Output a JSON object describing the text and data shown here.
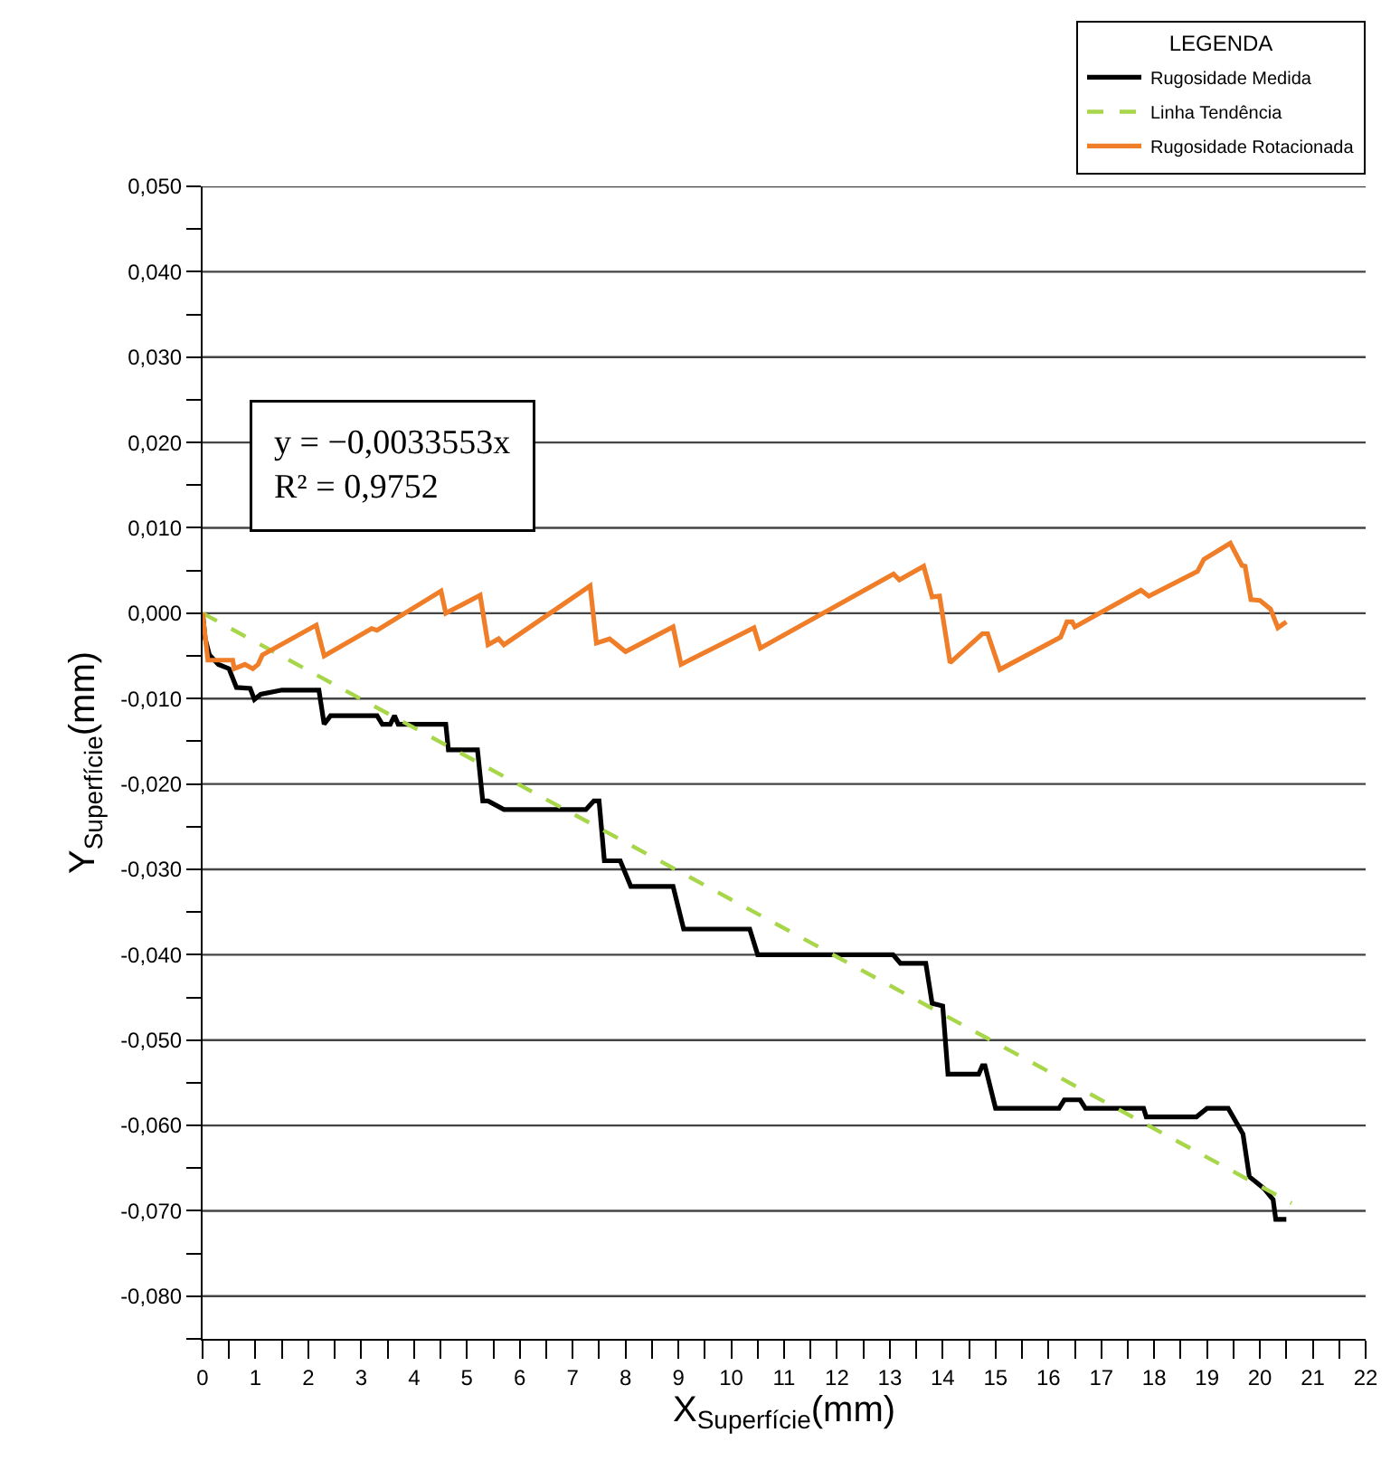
{
  "chart_data": {
    "type": "line",
    "xlabel": "X$_{Superfície}$(mm)",
    "ylabel": "Y$_{Superfície}$(mm)",
    "legend_title": "LEGENDA",
    "annotations": [
      "y = −0,0033553x",
      "R² = 0,9752"
    ],
    "xlim": [
      0,
      22
    ],
    "xticks": [
      0,
      {
        "value": 0.5,
        "label": null
      },
      1,
      {
        "value": 1.5,
        "label": null
      },
      2,
      {
        "value": 2.5,
        "label": null
      },
      3,
      {
        "value": 3.5,
        "label": null
      },
      4,
      {
        "value": 4.5,
        "label": null
      },
      5,
      {
        "value": 5.5,
        "label": null
      },
      6,
      {
        "value": 6.5,
        "label": null
      },
      7,
      {
        "value": 7.5,
        "label": null
      },
      8,
      {
        "value": 8.5,
        "label": null
      },
      9,
      {
        "value": 9.5,
        "label": null
      },
      10,
      {
        "value": 10.5,
        "label": null
      },
      11,
      {
        "value": 11.5,
        "label": null
      },
      12,
      {
        "value": 12.5,
        "label": null
      },
      13,
      {
        "value": 13.5,
        "label": null
      },
      14,
      {
        "value": 14.5,
        "label": null
      },
      15,
      {
        "value": 15.5,
        "label": null
      },
      16,
      {
        "value": 16.5,
        "label": null
      },
      17,
      {
        "value": 17.5,
        "label": null
      },
      18,
      {
        "value": 18.5,
        "label": null
      },
      19,
      {
        "value": 19.5,
        "label": null
      },
      20,
      {
        "value": 20.5,
        "label": null
      },
      21,
      {
        "value": 21.5,
        "label": null
      },
      22
    ],
    "ylim": [
      -0.085,
      0.05
    ],
    "yticks": [
      {
        "value": 0.05,
        "label": "0,050"
      },
      {
        "value": 0.045,
        "label": null
      },
      {
        "value": 0.04,
        "label": "0,040"
      },
      {
        "value": 0.035,
        "label": null
      },
      {
        "value": 0.03,
        "label": "0,030"
      },
      {
        "value": 0.025,
        "label": null
      },
      {
        "value": 0.02,
        "label": "0,020"
      },
      {
        "value": 0.015,
        "label": null
      },
      {
        "value": 0.01,
        "label": "0,010"
      },
      {
        "value": 0.005,
        "label": null
      },
      {
        "value": 0,
        "label": "0,000"
      },
      {
        "value": -0.005,
        "label": null
      },
      {
        "value": -0.01,
        "label": "-0,010"
      },
      {
        "value": -0.015,
        "label": null
      },
      {
        "value": -0.02,
        "label": "-0,020"
      },
      {
        "value": -0.025,
        "label": null
      },
      {
        "value": -0.03,
        "label": "-0,030"
      },
      {
        "value": -0.035,
        "label": null
      },
      {
        "value": -0.04,
        "label": "-0,040"
      },
      {
        "value": -0.045,
        "label": null
      },
      {
        "value": -0.05,
        "label": "-0,050"
      },
      {
        "value": -0.055,
        "label": null
      },
      {
        "value": -0.06,
        "label": "-0,060"
      },
      {
        "value": -0.065,
        "label": null
      },
      {
        "value": -0.07,
        "label": "-0,070"
      },
      {
        "value": -0.075,
        "label": null
      },
      {
        "value": -0.08,
        "label": "-0,080"
      },
      {
        "value": -0.085,
        "label": null
      }
    ],
    "grid": "y",
    "legend": "top right",
    "marker": "none",
    "series": [
      {
        "name": "Rugosidade Medida",
        "color": "#000000",
        "line_style": "solid",
        "x": [
          0,
          0.05,
          0.13,
          0.3,
          0.5,
          0.64,
          0.9,
          0.98,
          1.1,
          1.5,
          2.2,
          2.3,
          2.42,
          3.3,
          3.4,
          3.55,
          3.63,
          3.7,
          4.6,
          4.65,
          5.2,
          5.3,
          5.4,
          5.7,
          7.25,
          7.4,
          7.5,
          7.6,
          7.9,
          8.1,
          8.9,
          9.1,
          10.35,
          10.5,
          13.06,
          13.2,
          13.68,
          13.8,
          14.0,
          14.1,
          14.68,
          14.75,
          14.8,
          15.0,
          16.2,
          16.3,
          16.6,
          16.7,
          17.8,
          17.85,
          18.8,
          19.0,
          19.4,
          19.68,
          19.8,
          20.08,
          20.25,
          20.3,
          20.5
        ],
        "values": [
          0,
          -0.003,
          -0.0049,
          -0.006,
          -0.0065,
          -0.0087,
          -0.0088,
          -0.0101,
          -0.0095,
          -0.009,
          -0.009,
          -0.013,
          -0.012,
          -0.012,
          -0.013,
          -0.013,
          -0.012,
          -0.013,
          -0.013,
          -0.016,
          -0.016,
          -0.022,
          -0.022,
          -0.023,
          -0.023,
          -0.022,
          -0.022,
          -0.029,
          -0.029,
          -0.032,
          -0.032,
          -0.037,
          -0.037,
          -0.04,
          -0.04,
          -0.041,
          -0.041,
          -0.0457,
          -0.046,
          -0.054,
          -0.054,
          -0.053,
          -0.053,
          -0.058,
          -0.058,
          -0.057,
          -0.057,
          -0.058,
          -0.058,
          -0.059,
          -0.059,
          -0.058,
          -0.058,
          -0.061,
          -0.066,
          -0.0674,
          -0.0687,
          -0.071,
          -0.071
        ]
      },
      {
        "name": "Linha Tendência",
        "color": "#a8d64a",
        "line_style": "dashed",
        "x": [
          0,
          20.6
        ],
        "values": [
          0,
          -0.0691
        ]
      },
      {
        "name": "Rugosidade Rotacionada",
        "color": "#f07d28",
        "line_style": "solid",
        "x": [
          0,
          0.1,
          0.57,
          0.6,
          0.8,
          0.95,
          1.05,
          1.13,
          2.15,
          2.3,
          3.2,
          3.3,
          4.51,
          4.6,
          5.25,
          5.4,
          5.6,
          5.7,
          7.33,
          7.45,
          7.7,
          8.0,
          8.9,
          9.05,
          10.43,
          10.55,
          13.07,
          13.18,
          13.64,
          13.8,
          13.94,
          14.14,
          14.75,
          14.85,
          15.08,
          16.23,
          16.35,
          16.45,
          16.5,
          17.75,
          17.9,
          18.82,
          18.94,
          19.44,
          19.66,
          19.72,
          19.83,
          20.0,
          20.2,
          20.34,
          20.5
        ],
        "values": [
          0,
          -0.0055,
          -0.0055,
          -0.0065,
          -0.006,
          -0.0065,
          -0.006,
          -0.0049,
          -0.0014,
          -0.005,
          -0.0018,
          -0.002,
          0.0026,
          0.0,
          0.0021,
          -0.0037,
          -0.003,
          -0.0037,
          0.0032,
          -0.0035,
          -0.003,
          -0.0045,
          -0.0016,
          -0.006,
          -0.0017,
          -0.0041,
          0.0046,
          0.0039,
          0.0055,
          0.0019,
          0.002,
          -0.0058,
          -0.0024,
          -0.0024,
          -0.0066,
          -0.0028,
          -0.001,
          -0.001,
          -0.0016,
          0.0027,
          0.002,
          0.0049,
          0.0063,
          0.0082,
          0.0056,
          0.0055,
          0.0016,
          0.0015,
          0.0005,
          -0.0017,
          -0.001
        ]
      }
    ]
  }
}
